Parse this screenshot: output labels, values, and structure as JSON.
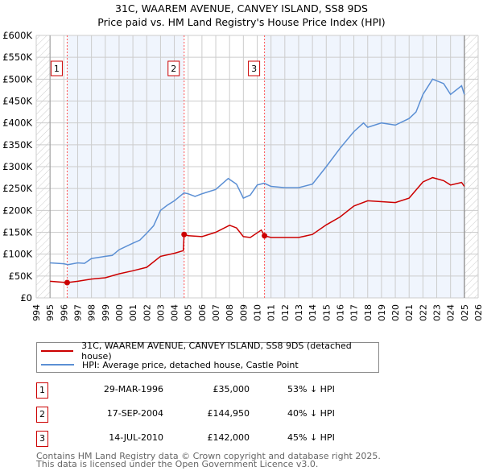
{
  "title": "31C, WAAREM AVENUE, CANVEY ISLAND, SS8 9DS",
  "subtitle": "Price paid vs. HM Land Registry's House Price Index (HPI)",
  "chart_data": {
    "type": "line",
    "xlim": [
      1994,
      2026
    ],
    "ylim": [
      0,
      600000
    ],
    "x_ticks": [
      "1994",
      "1995",
      "1996",
      "1997",
      "1998",
      "1999",
      "2000",
      "2001",
      "2002",
      "2003",
      "2004",
      "2005",
      "2006",
      "2007",
      "2008",
      "2009",
      "2010",
      "2011",
      "2012",
      "2013",
      "2014",
      "2015",
      "2016",
      "2017",
      "2018",
      "2019",
      "2020",
      "2021",
      "2022",
      "2023",
      "2024",
      "2025",
      "2026"
    ],
    "y_ticks": [
      {
        "v": 0,
        "l": "£0"
      },
      {
        "v": 50000,
        "l": "£50K"
      },
      {
        "v": 100000,
        "l": "£100K"
      },
      {
        "v": 150000,
        "l": "£150K"
      },
      {
        "v": 200000,
        "l": "£200K"
      },
      {
        "v": 250000,
        "l": "£250K"
      },
      {
        "v": 300000,
        "l": "£300K"
      },
      {
        "v": 350000,
        "l": "£350K"
      },
      {
        "v": 400000,
        "l": "£400K"
      },
      {
        "v": 450000,
        "l": "£450K"
      },
      {
        "v": 500000,
        "l": "£500K"
      },
      {
        "v": 550000,
        "l": "£550K"
      },
      {
        "v": 600000,
        "l": "£600K"
      }
    ],
    "grid": true,
    "series": [
      {
        "name": "31C, WAAREM AVENUE, CANVEY ISLAND, SS8 9DS (detached house)",
        "color": "#cc0000",
        "x": [
          1995,
          1996.24,
          1997,
          1998,
          1999,
          2000,
          2001,
          2002,
          2003,
          2004,
          2004.65,
          2004.71,
          2005,
          2006,
          2007,
          2008,
          2008.5,
          2009,
          2009.5,
          2010.3,
          2010.53,
          2011,
          2012,
          2013,
          2014,
          2015,
          2016,
          2017,
          2018,
          2019,
          2020,
          2021,
          2022,
          2022.7,
          2023.5,
          2024,
          2024.8,
          2025
        ],
        "y": [
          38000,
          35000,
          38000,
          43000,
          46000,
          55000,
          62000,
          70000,
          95000,
          102000,
          108000,
          144950,
          142000,
          140000,
          150000,
          166000,
          160000,
          140000,
          138000,
          155000,
          142000,
          138000,
          138000,
          138000,
          145000,
          167000,
          185000,
          210000,
          222000,
          220000,
          218000,
          228000,
          265000,
          275000,
          268000,
          258000,
          264000,
          255000
        ]
      },
      {
        "name": "HPI: Average price, detached house, Castle Point",
        "color": "#5b8fd4",
        "x": [
          1995,
          1996,
          1996.3,
          1997,
          1997.5,
          1998,
          1999,
          1999.5,
          2000,
          2001,
          2001.5,
          2002,
          2002.5,
          2003,
          2003.5,
          2004,
          2004.7,
          2005,
          2005.5,
          2006,
          2007,
          2007.9,
          2008.5,
          2009,
          2009.5,
          2010,
          2010.5,
          2011,
          2012,
          2013,
          2014,
          2015,
          2016,
          2017,
          2017.7,
          2018,
          2019,
          2020,
          2021,
          2021.5,
          2022,
          2022.7,
          2023.5,
          2024,
          2024.8,
          2025
        ],
        "y": [
          80000,
          78000,
          76000,
          80000,
          79000,
          90000,
          95000,
          97000,
          110000,
          125000,
          132000,
          148000,
          165000,
          200000,
          212000,
          222000,
          240000,
          238000,
          232000,
          238000,
          248000,
          273000,
          260000,
          228000,
          235000,
          258000,
          262000,
          255000,
          252000,
          252000,
          260000,
          300000,
          342000,
          380000,
          400000,
          390000,
          400000,
          395000,
          410000,
          425000,
          465000,
          500000,
          490000,
          465000,
          485000,
          465000
        ]
      }
    ],
    "sales": [
      {
        "label": "1",
        "x": 1996.24,
        "y": 35000
      },
      {
        "label": "2",
        "x": 2004.71,
        "y": 144950
      },
      {
        "label": "3",
        "x": 2010.53,
        "y": 142000
      }
    ],
    "data_end": 2025.0
  },
  "legend": {
    "items": [
      {
        "label": "31C, WAAREM AVENUE, CANVEY ISLAND, SS8 9DS (detached house)",
        "color": "#cc0000"
      },
      {
        "label": "HPI: Average price, detached house, Castle Point",
        "color": "#5b8fd4"
      }
    ]
  },
  "transactions": [
    {
      "num": "1",
      "date": "29-MAR-1996",
      "price": "£35,000",
      "hpi": "53% ↓ HPI"
    },
    {
      "num": "2",
      "date": "17-SEP-2004",
      "price": "£144,950",
      "hpi": "40% ↓ HPI"
    },
    {
      "num": "3",
      "date": "14-JUL-2010",
      "price": "£142,000",
      "hpi": "45% ↓ HPI"
    }
  ],
  "footer": [
    "Contains HM Land Registry data © Crown copyright and database right 2025.",
    "This data is licensed under the Open Government Licence v3.0."
  ]
}
